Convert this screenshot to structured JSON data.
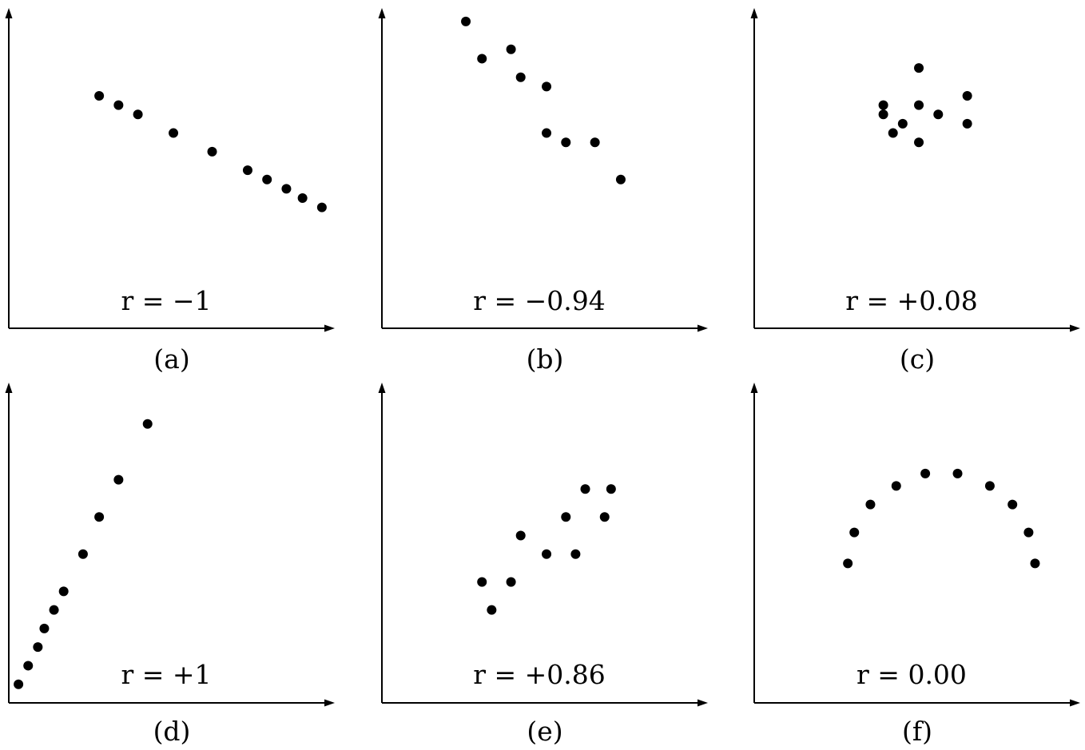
{
  "chart_data": [
    {
      "type": "scatter",
      "panel_label": "(a)",
      "annotation": "r = −1",
      "xlim": [
        0,
        10
      ],
      "ylim": [
        0,
        10
      ],
      "grid": false,
      "points": [
        {
          "x": 2.8,
          "y": 7.5
        },
        {
          "x": 3.4,
          "y": 7.2
        },
        {
          "x": 4.0,
          "y": 6.9
        },
        {
          "x": 5.1,
          "y": 6.3
        },
        {
          "x": 6.3,
          "y": 5.7
        },
        {
          "x": 7.4,
          "y": 5.1
        },
        {
          "x": 8.0,
          "y": 4.8
        },
        {
          "x": 8.6,
          "y": 4.5
        },
        {
          "x": 9.1,
          "y": 4.2
        },
        {
          "x": 9.7,
          "y": 3.9
        }
      ]
    },
    {
      "type": "scatter",
      "panel_label": "(b)",
      "annotation": "r = −0.94",
      "xlim": [
        0,
        10
      ],
      "ylim": [
        0,
        10
      ],
      "grid": false,
      "points": [
        {
          "x": 2.6,
          "y": 9.9
        },
        {
          "x": 3.1,
          "y": 8.7
        },
        {
          "x": 4.0,
          "y": 9.0
        },
        {
          "x": 4.3,
          "y": 8.1
        },
        {
          "x": 5.1,
          "y": 7.8
        },
        {
          "x": 5.1,
          "y": 6.3
        },
        {
          "x": 5.7,
          "y": 6.0
        },
        {
          "x": 6.6,
          "y": 6.0
        },
        {
          "x": 7.4,
          "y": 4.8
        }
      ]
    },
    {
      "type": "scatter",
      "panel_label": "(c)",
      "annotation": "r = +0.08",
      "xlim": [
        0,
        10
      ],
      "ylim": [
        0,
        10
      ],
      "grid": false,
      "points": [
        {
          "x": 4.0,
          "y": 7.2
        },
        {
          "x": 4.0,
          "y": 6.9
        },
        {
          "x": 4.3,
          "y": 6.3
        },
        {
          "x": 4.6,
          "y": 6.6
        },
        {
          "x": 5.1,
          "y": 8.4
        },
        {
          "x": 5.1,
          "y": 7.2
        },
        {
          "x": 5.1,
          "y": 6.0
        },
        {
          "x": 5.7,
          "y": 6.9
        },
        {
          "x": 6.6,
          "y": 7.5
        },
        {
          "x": 6.6,
          "y": 6.6
        }
      ]
    },
    {
      "type": "scatter",
      "panel_label": "(d)",
      "annotation": "r = +1",
      "xlim": [
        0,
        10
      ],
      "ylim": [
        0,
        10
      ],
      "grid": false,
      "points": [
        {
          "x": 0.3,
          "y": 0.6
        },
        {
          "x": 0.6,
          "y": 1.2
        },
        {
          "x": 0.9,
          "y": 1.8
        },
        {
          "x": 1.1,
          "y": 2.4
        },
        {
          "x": 1.4,
          "y": 3.0
        },
        {
          "x": 1.7,
          "y": 3.6
        },
        {
          "x": 2.3,
          "y": 4.8
        },
        {
          "x": 2.8,
          "y": 6.0
        },
        {
          "x": 3.4,
          "y": 7.2
        },
        {
          "x": 4.3,
          "y": 9.0
        }
      ]
    },
    {
      "type": "scatter",
      "panel_label": "(e)",
      "annotation": "r = +0.86",
      "xlim": [
        0,
        10
      ],
      "ylim": [
        0,
        10
      ],
      "grid": false,
      "points": [
        {
          "x": 3.1,
          "y": 3.9
        },
        {
          "x": 3.4,
          "y": 3.0
        },
        {
          "x": 4.0,
          "y": 3.9
        },
        {
          "x": 4.3,
          "y": 5.4
        },
        {
          "x": 5.1,
          "y": 4.8
        },
        {
          "x": 5.7,
          "y": 6.0
        },
        {
          "x": 6.0,
          "y": 4.8
        },
        {
          "x": 6.3,
          "y": 6.9
        },
        {
          "x": 6.9,
          "y": 6.0
        },
        {
          "x": 7.1,
          "y": 6.9
        }
      ]
    },
    {
      "type": "scatter",
      "panel_label": "(f)",
      "annotation": "r = 0.00",
      "xlim": [
        0,
        10
      ],
      "ylim": [
        0,
        10
      ],
      "grid": false,
      "points": [
        {
          "x": 2.9,
          "y": 4.5
        },
        {
          "x": 3.1,
          "y": 5.5
        },
        {
          "x": 3.6,
          "y": 6.4
        },
        {
          "x": 4.4,
          "y": 7.0
        },
        {
          "x": 5.3,
          "y": 7.4
        },
        {
          "x": 6.3,
          "y": 7.4
        },
        {
          "x": 7.3,
          "y": 7.0
        },
        {
          "x": 8.0,
          "y": 6.4
        },
        {
          "x": 8.5,
          "y": 5.5
        },
        {
          "x": 8.7,
          "y": 4.5
        }
      ]
    }
  ]
}
